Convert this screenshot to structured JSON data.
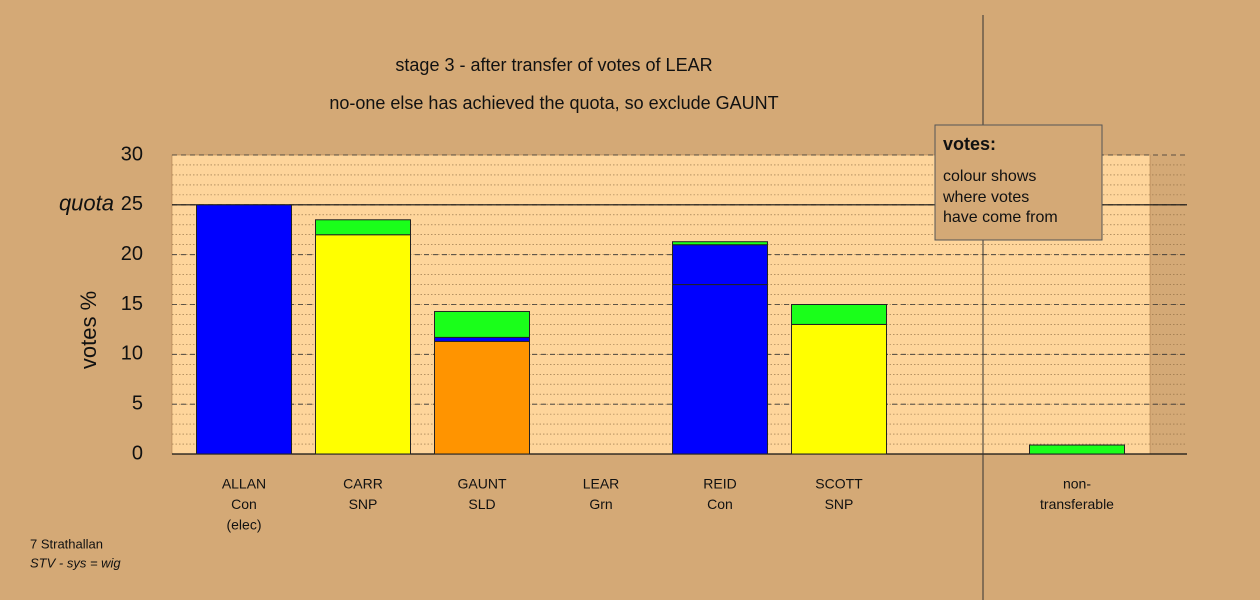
{
  "chart_data": {
    "type": "stacked_bar",
    "title": "stage 3 - after transfer of votes of LEAR",
    "subtitle": "no-one else has achieved the quota, so exclude GAUNT",
    "y_label": "votes %",
    "categories": [
      [
        "ALLAN",
        "Con",
        "(elec)"
      ],
      [
        "CARR",
        "SNP"
      ],
      [
        "GAUNT",
        "SLD"
      ],
      [
        "LEAR",
        "Grn"
      ],
      [
        "REID",
        "Con"
      ],
      [
        "SCOTT",
        "SNP"
      ],
      null,
      [
        "non-",
        "transferable"
      ]
    ],
    "series": [
      {
        "colors": [
          "#0000ff",
          "#ffff00",
          "#ff9400",
          "#1aff1a",
          "#0000ff",
          "#ffff00",
          null,
          "#1aff1a"
        ],
        "values": [
          25,
          22,
          11.3,
          0,
          17,
          13,
          null,
          0
        ]
      },
      {
        "color": "#0000ff",
        "values": [
          0,
          0,
          0.4,
          0,
          4,
          0,
          null,
          0
        ]
      },
      {
        "color": "#1aff1a",
        "values": [
          0,
          1.5,
          2.6,
          0,
          0.3,
          2,
          null,
          0.9
        ]
      }
    ],
    "ylim": [
      0,
      30
    ],
    "yticks": [
      0,
      5,
      10,
      15,
      20,
      25,
      30
    ],
    "minor_grid_step": 1,
    "quota": {
      "value": 25,
      "label": "quota"
    },
    "legend_note": {
      "title": "votes:",
      "lines": [
        "colour shows",
        "where votes",
        "have come from"
      ]
    }
  },
  "footer": {
    "area": "7 Strathallan",
    "system": "STV - sys = wig"
  }
}
